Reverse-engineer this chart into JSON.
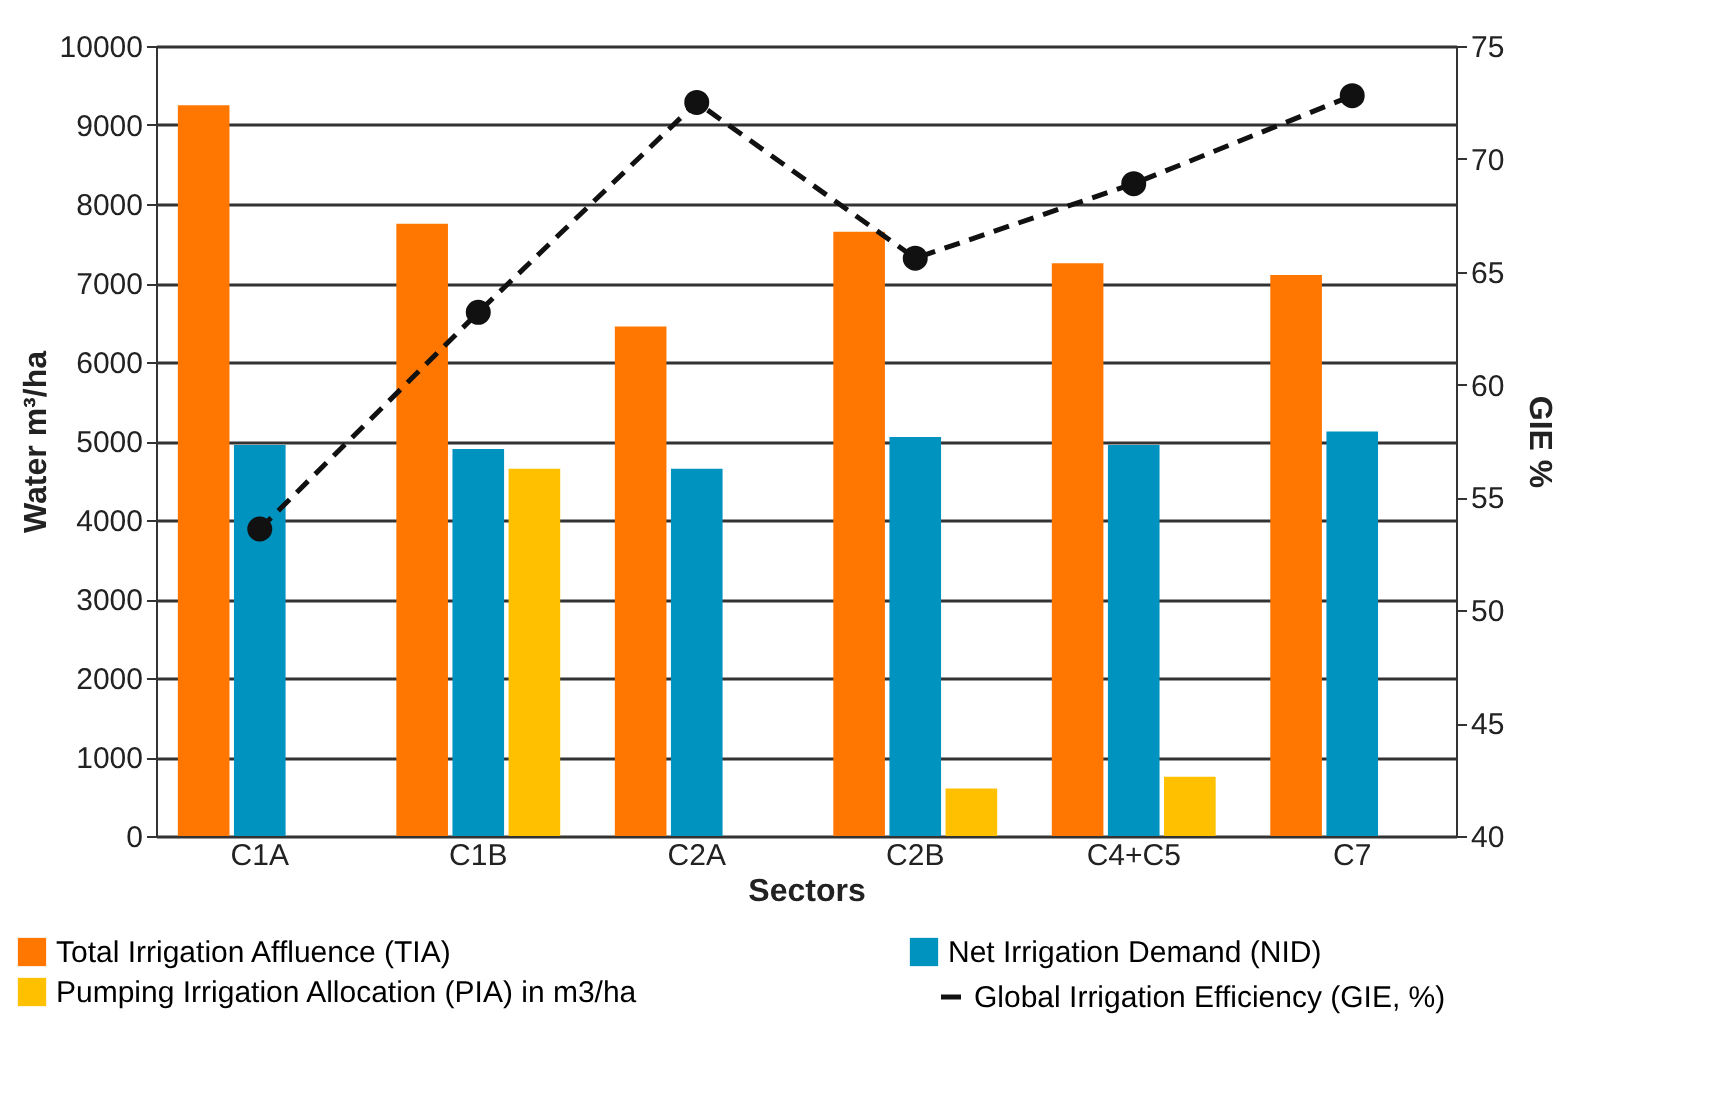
{
  "chart_data": {
    "type": "bar",
    "categories": [
      "C1A",
      "C1B",
      "C2A",
      "C2B",
      "C4+C5",
      "C7"
    ],
    "xlabel": "Sectors",
    "ylabel": "Water m³/ha",
    "y2label": "GIE %",
    "series": [
      {
        "name": "Total Irrigation Affluence (TIA)",
        "color": "#ff7700",
        "values": [
          9250,
          7750,
          6450,
          7650,
          7250,
          7100
        ]
      },
      {
        "name": "Net Irrigation Demand (NID)",
        "color": "#0093c0",
        "values": [
          4950,
          4900,
          4650,
          5050,
          4950,
          5120
        ]
      },
      {
        "name": "Pumping Irrigation Allocation (PIA) in m3/ha",
        "color": "#ffc000",
        "values": [
          null,
          4650,
          null,
          600,
          750,
          null
        ]
      },
      {
        "name": "Global Irrigation Efficiency (GIE, %)",
        "type": "line",
        "axis": "y2",
        "color": "#111111",
        "marker": "circle",
        "line_style": "dashed",
        "values": [
          53.6,
          63.2,
          72.5,
          65.6,
          68.9,
          72.8
        ]
      }
    ],
    "ylim": [
      0,
      10000
    ],
    "yticks": [
      0,
      1000,
      2000,
      3000,
      4000,
      5000,
      6000,
      7000,
      8000,
      9000,
      10000
    ],
    "y2lim": [
      40,
      75
    ],
    "y2ticks": [
      40,
      45,
      50,
      55,
      60,
      65,
      70,
      75
    ],
    "grid": "y",
    "legend": "bottom"
  }
}
